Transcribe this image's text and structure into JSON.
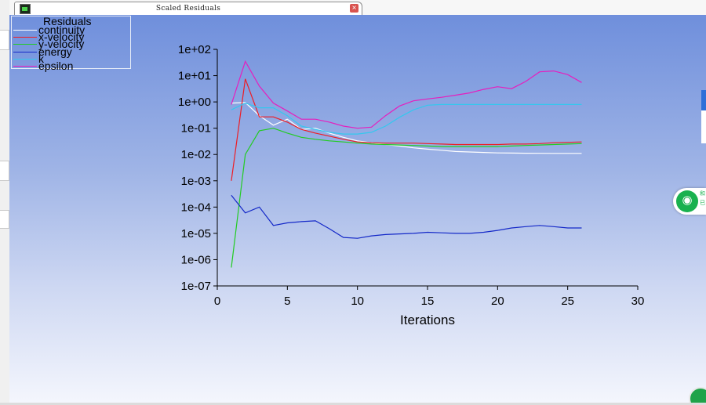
{
  "window": {
    "tab_title": "Scaled Residuals",
    "close_icon": "close-icon",
    "app_icon": "app-icon",
    "wifi_badge": {
      "icon": "wifi-icon",
      "text": "和 已"
    }
  },
  "chart_data": {
    "type": "line",
    "title": "",
    "xlabel": "Iterations",
    "ylabel": "",
    "xlim": [
      0,
      30
    ],
    "ylim": [
      1e-07,
      100
    ],
    "y_scale": "log",
    "grid": false,
    "legend_placement": "top-left",
    "legend_title": "Residuals",
    "x_ticks": [
      0,
      5,
      10,
      15,
      20,
      25,
      30
    ],
    "y_ticks": [
      1e-07,
      1e-06,
      1e-05,
      0.0001,
      0.001,
      0.01,
      0.1,
      1,
      10,
      100
    ],
    "y_tick_labels": [
      "1e-07",
      "1e-06",
      "1e-05",
      "1e-04",
      "1e-03",
      "1e-02",
      "1e-01",
      "1e+00",
      "1e+01",
      "1e+02"
    ],
    "x": [
      1,
      2,
      3,
      4,
      5,
      6,
      7,
      8,
      9,
      10,
      11,
      12,
      13,
      14,
      15,
      16,
      17,
      18,
      19,
      20,
      21,
      22,
      23,
      24,
      25,
      26
    ],
    "series": [
      {
        "name": "continuity",
        "color": "#ffffff",
        "values": [
          0.9,
          0.95,
          0.3,
          0.13,
          0.22,
          0.09,
          0.1,
          0.065,
          0.045,
          0.033,
          0.028,
          0.024,
          0.021,
          0.018,
          0.016,
          0.0145,
          0.013,
          0.0125,
          0.012,
          0.0115,
          0.0113,
          0.0112,
          0.0111,
          0.011,
          0.011,
          0.011
        ]
      },
      {
        "name": "x-velocity",
        "color": "#ee1c24",
        "values": [
          0.001,
          7.5,
          0.27,
          0.27,
          0.17,
          0.09,
          0.065,
          0.05,
          0.038,
          0.03,
          0.028,
          0.027,
          0.027,
          0.027,
          0.026,
          0.025,
          0.024,
          0.024,
          0.024,
          0.024,
          0.025,
          0.025,
          0.026,
          0.028,
          0.029,
          0.03
        ]
      },
      {
        "name": "y-velocity",
        "color": "#22cc22",
        "values": [
          5e-07,
          0.01,
          0.08,
          0.1,
          0.065,
          0.045,
          0.038,
          0.033,
          0.03,
          0.027,
          0.025,
          0.024,
          0.023,
          0.022,
          0.021,
          0.02,
          0.02,
          0.02,
          0.02,
          0.02,
          0.021,
          0.022,
          0.023,
          0.024,
          0.025,
          0.026
        ]
      },
      {
        "name": "energy",
        "color": "#1428c8",
        "values": [
          0.00028,
          6e-05,
          0.0001,
          2e-05,
          2.5e-05,
          2.8e-05,
          3e-05,
          1.5e-05,
          7e-06,
          6.5e-06,
          8e-06,
          9e-06,
          9.5e-06,
          1e-05,
          1.1e-05,
          1.05e-05,
          1e-05,
          1e-05,
          1.1e-05,
          1.3e-05,
          1.6e-05,
          1.8e-05,
          2e-05,
          1.8e-05,
          1.6e-05,
          1.6e-05
        ]
      },
      {
        "name": "k",
        "color": "#33c8ee",
        "values": [
          0.5,
          0.9,
          0.6,
          0.6,
          0.3,
          0.12,
          0.09,
          0.07,
          0.06,
          0.06,
          0.07,
          0.12,
          0.26,
          0.5,
          0.75,
          0.8,
          0.8,
          0.8,
          0.8,
          0.8,
          0.8,
          0.8,
          0.8,
          0.8,
          0.8,
          0.8
        ]
      },
      {
        "name": "epsilon",
        "color": "#e61ebe",
        "values": [
          0.8,
          35,
          4,
          0.9,
          0.45,
          0.22,
          0.22,
          0.17,
          0.12,
          0.1,
          0.11,
          0.3,
          0.7,
          1.1,
          1.3,
          1.5,
          1.8,
          2.2,
          3,
          3.8,
          3.2,
          6,
          14,
          15,
          11,
          5.5
        ]
      }
    ]
  }
}
